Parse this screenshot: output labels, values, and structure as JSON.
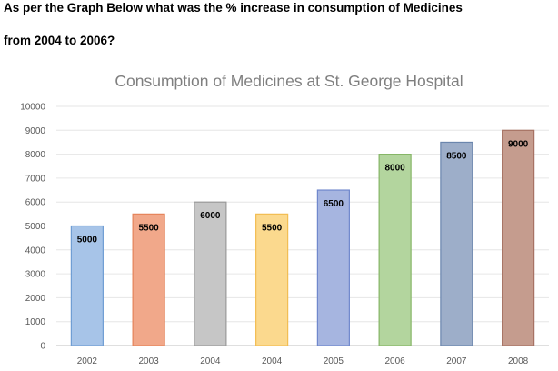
{
  "question": {
    "line1": "As per the Graph Below what was the % increase in consumption of Medicines",
    "line2": "from 2004 to 2006?"
  },
  "chart_data": {
    "type": "bar",
    "title": "Consumption of Medicines at St. George Hospital",
    "xlabel": "",
    "ylabel": "",
    "categories": [
      "2002",
      "2003",
      "2004",
      "2004",
      "2005",
      "2006",
      "2007",
      "2008"
    ],
    "values": [
      5000,
      5500,
      6000,
      5500,
      6500,
      8000,
      8500,
      9000
    ],
    "data_labels": [
      "5000",
      "5500",
      "6000",
      "5500",
      "6500",
      "8000",
      "8500",
      "9000"
    ],
    "ylim": [
      0,
      10000
    ],
    "yticks": [
      "0",
      "1000",
      "2000",
      "3000",
      "4000",
      "5000",
      "6000",
      "7000",
      "8000",
      "9000",
      "10000"
    ],
    "grid": true,
    "legend": "none",
    "colors": {
      "fills": [
        "#a7c4e8",
        "#f1a88a",
        "#c6c6c6",
        "#fbd98e",
        "#a6b5e0",
        "#b3d59e",
        "#9daec9",
        "#c59c8e"
      ],
      "borders": [
        "#6f9dd3",
        "#e5835a",
        "#9a9a9a",
        "#f2bd52",
        "#6f87cc",
        "#86b667",
        "#6b86ad",
        "#a67263"
      ]
    }
  }
}
